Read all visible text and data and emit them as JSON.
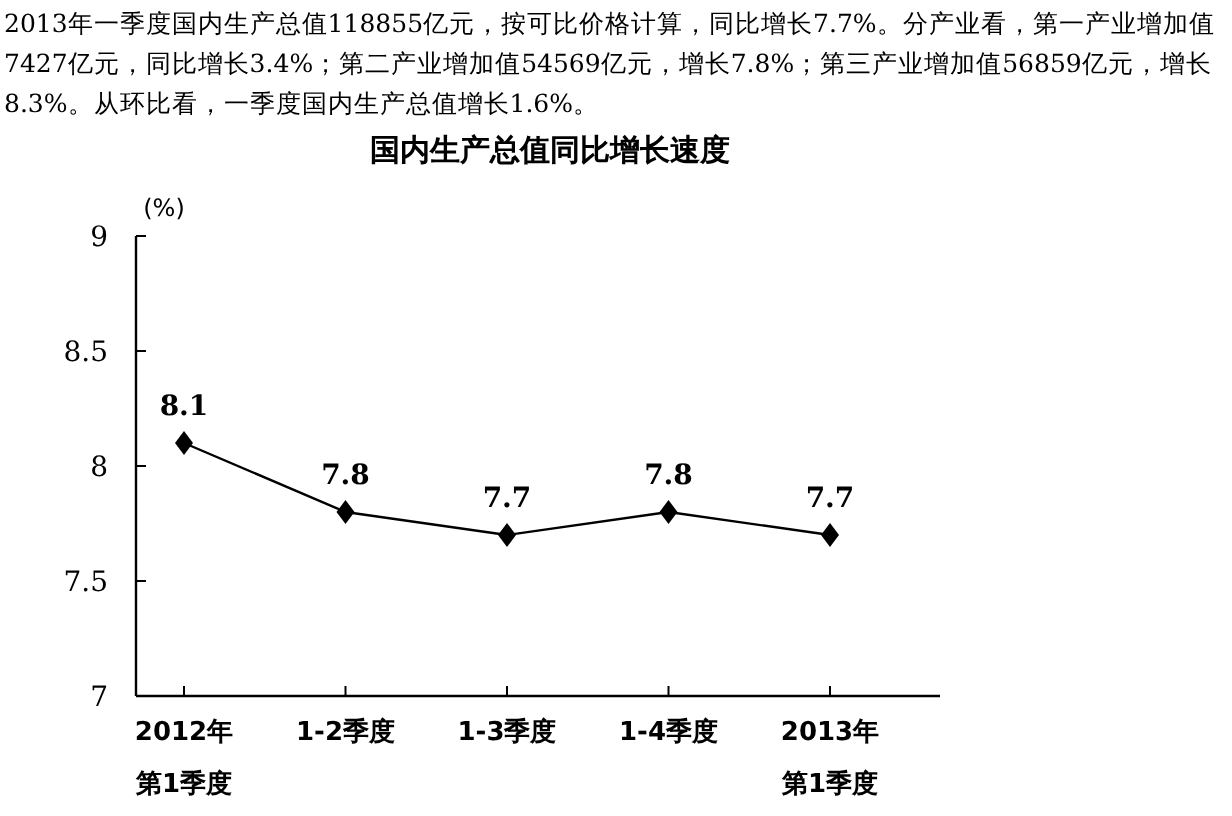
{
  "chart_data": {
    "type": "line",
    "title": "国内生产总值同比增长速度",
    "ylabel": "(%)",
    "annotations": [
      "2013年一季度国内生产总值118855亿元，按可比价格计算，同比增长7.7%。分产业看，第一产业增加值7427亿元，同比增长3.4%；第二产业增加值54569亿元，增长7.8%；第三产业增加值56859亿元，增长8.3%。从环比看，一季度国内生产总值增长1.6%。"
    ],
    "categories": [
      "2012年第1季度",
      "1-2季度",
      "1-3季度",
      "1-4季度",
      "2013年第1季度"
    ],
    "series": [
      {
        "color": "#000000",
        "values": [
          8.1,
          7.8,
          7.7,
          7.8,
          7.7
        ]
      }
    ],
    "ylim": [
      7,
      9
    ],
    "yticks": [
      7,
      7.5,
      8,
      8.5,
      9
    ],
    "marker": "diamond",
    "line_style": "solid",
    "data_labels": true
  }
}
